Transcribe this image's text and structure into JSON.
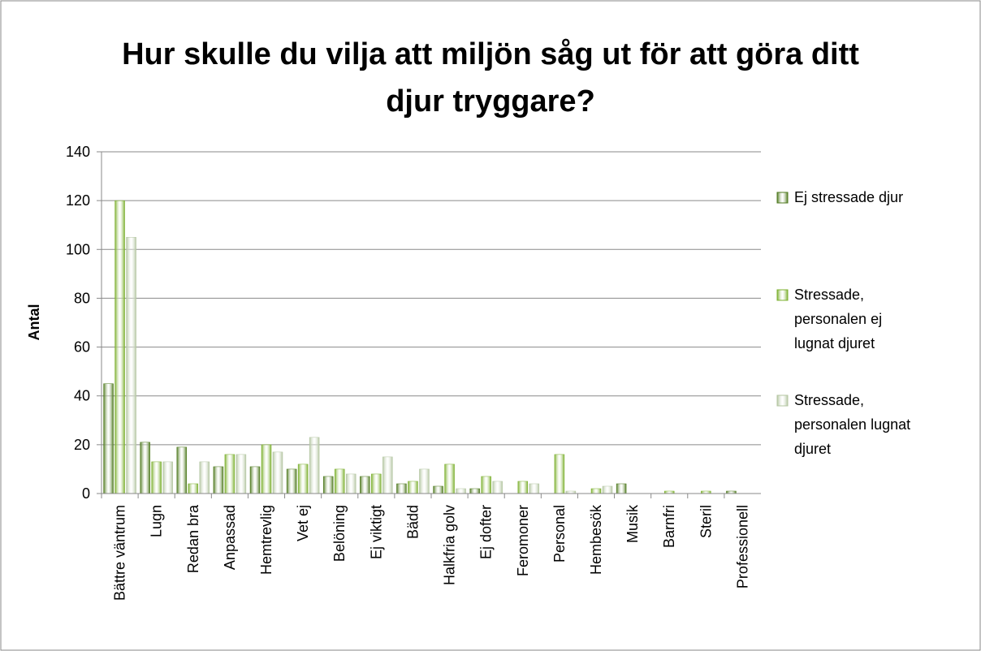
{
  "chart_data": {
    "type": "bar",
    "title": "Hur skulle du vilja att miljön såg ut för att göra ditt djur tryggare?",
    "y_label": "Antal",
    "categories": [
      "Bättre väntrum",
      "Lugn",
      "Redan bra",
      "Anpassad",
      "Hemtrevlig",
      "Vet ej",
      "Belöning",
      "Ej viktigt",
      "Bädd",
      "Halkfria golv",
      "Ej dofter",
      "Feromoner",
      "Personal",
      "Hembesök",
      "Musik",
      "Barnfri",
      "Steril",
      "Professionell"
    ],
    "series": [
      {
        "name": "Ej stressade djur",
        "color": "#4f7a1f",
        "values": [
          45,
          21,
          19,
          11,
          11,
          10,
          7,
          7,
          4,
          3,
          2,
          0,
          0,
          0,
          4,
          0,
          0,
          1
        ]
      },
      {
        "name": "Stressade, personalen ej lugnat djuret",
        "color": "#7cb02f",
        "values": [
          120,
          13,
          4,
          16,
          20,
          12,
          10,
          8,
          5,
          12,
          7,
          5,
          16,
          2,
          0,
          1,
          1,
          0
        ]
      },
      {
        "name": "Stressade, personalen lugnat djuret",
        "color": "#b4c6a2",
        "values": [
          105,
          13,
          13,
          16,
          17,
          23,
          8,
          15,
          10,
          2,
          5,
          4,
          1,
          3,
          0,
          0,
          0,
          0
        ]
      }
    ],
    "ylim": [
      0,
      140
    ],
    "yticks": [
      0,
      20,
      40,
      60,
      80,
      100,
      120,
      140
    ],
    "grid": true,
    "legend": "right"
  }
}
